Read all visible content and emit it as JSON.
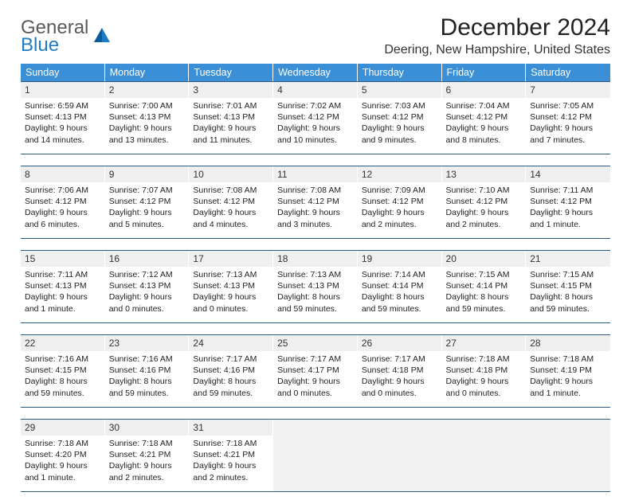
{
  "brand": {
    "word1": "General",
    "word2": "Blue"
  },
  "title": "December 2024",
  "location": "Deering, New Hampshire, United States",
  "day_headers": [
    "Sunday",
    "Monday",
    "Tuesday",
    "Wednesday",
    "Thursday",
    "Friday",
    "Saturday"
  ],
  "colors": {
    "header_bg": "#3b8fd6",
    "header_text": "#ffffff",
    "daynum_bg": "#efefef",
    "row_border": "#2b5a86",
    "logo_gray": "#5a5a5a",
    "logo_blue": "#1e7bc4"
  },
  "weeks": [
    [
      {
        "n": "1",
        "sr": "Sunrise: 6:59 AM",
        "ss": "Sunset: 4:13 PM",
        "d1": "Daylight: 9 hours",
        "d2": "and 14 minutes."
      },
      {
        "n": "2",
        "sr": "Sunrise: 7:00 AM",
        "ss": "Sunset: 4:13 PM",
        "d1": "Daylight: 9 hours",
        "d2": "and 13 minutes."
      },
      {
        "n": "3",
        "sr": "Sunrise: 7:01 AM",
        "ss": "Sunset: 4:13 PM",
        "d1": "Daylight: 9 hours",
        "d2": "and 11 minutes."
      },
      {
        "n": "4",
        "sr": "Sunrise: 7:02 AM",
        "ss": "Sunset: 4:12 PM",
        "d1": "Daylight: 9 hours",
        "d2": "and 10 minutes."
      },
      {
        "n": "5",
        "sr": "Sunrise: 7:03 AM",
        "ss": "Sunset: 4:12 PM",
        "d1": "Daylight: 9 hours",
        "d2": "and 9 minutes."
      },
      {
        "n": "6",
        "sr": "Sunrise: 7:04 AM",
        "ss": "Sunset: 4:12 PM",
        "d1": "Daylight: 9 hours",
        "d2": "and 8 minutes."
      },
      {
        "n": "7",
        "sr": "Sunrise: 7:05 AM",
        "ss": "Sunset: 4:12 PM",
        "d1": "Daylight: 9 hours",
        "d2": "and 7 minutes."
      }
    ],
    [
      {
        "n": "8",
        "sr": "Sunrise: 7:06 AM",
        "ss": "Sunset: 4:12 PM",
        "d1": "Daylight: 9 hours",
        "d2": "and 6 minutes."
      },
      {
        "n": "9",
        "sr": "Sunrise: 7:07 AM",
        "ss": "Sunset: 4:12 PM",
        "d1": "Daylight: 9 hours",
        "d2": "and 5 minutes."
      },
      {
        "n": "10",
        "sr": "Sunrise: 7:08 AM",
        "ss": "Sunset: 4:12 PM",
        "d1": "Daylight: 9 hours",
        "d2": "and 4 minutes."
      },
      {
        "n": "11",
        "sr": "Sunrise: 7:08 AM",
        "ss": "Sunset: 4:12 PM",
        "d1": "Daylight: 9 hours",
        "d2": "and 3 minutes."
      },
      {
        "n": "12",
        "sr": "Sunrise: 7:09 AM",
        "ss": "Sunset: 4:12 PM",
        "d1": "Daylight: 9 hours",
        "d2": "and 2 minutes."
      },
      {
        "n": "13",
        "sr": "Sunrise: 7:10 AM",
        "ss": "Sunset: 4:12 PM",
        "d1": "Daylight: 9 hours",
        "d2": "and 2 minutes."
      },
      {
        "n": "14",
        "sr": "Sunrise: 7:11 AM",
        "ss": "Sunset: 4:12 PM",
        "d1": "Daylight: 9 hours",
        "d2": "and 1 minute."
      }
    ],
    [
      {
        "n": "15",
        "sr": "Sunrise: 7:11 AM",
        "ss": "Sunset: 4:13 PM",
        "d1": "Daylight: 9 hours",
        "d2": "and 1 minute."
      },
      {
        "n": "16",
        "sr": "Sunrise: 7:12 AM",
        "ss": "Sunset: 4:13 PM",
        "d1": "Daylight: 9 hours",
        "d2": "and 0 minutes."
      },
      {
        "n": "17",
        "sr": "Sunrise: 7:13 AM",
        "ss": "Sunset: 4:13 PM",
        "d1": "Daylight: 9 hours",
        "d2": "and 0 minutes."
      },
      {
        "n": "18",
        "sr": "Sunrise: 7:13 AM",
        "ss": "Sunset: 4:13 PM",
        "d1": "Daylight: 8 hours",
        "d2": "and 59 minutes."
      },
      {
        "n": "19",
        "sr": "Sunrise: 7:14 AM",
        "ss": "Sunset: 4:14 PM",
        "d1": "Daylight: 8 hours",
        "d2": "and 59 minutes."
      },
      {
        "n": "20",
        "sr": "Sunrise: 7:15 AM",
        "ss": "Sunset: 4:14 PM",
        "d1": "Daylight: 8 hours",
        "d2": "and 59 minutes."
      },
      {
        "n": "21",
        "sr": "Sunrise: 7:15 AM",
        "ss": "Sunset: 4:15 PM",
        "d1": "Daylight: 8 hours",
        "d2": "and 59 minutes."
      }
    ],
    [
      {
        "n": "22",
        "sr": "Sunrise: 7:16 AM",
        "ss": "Sunset: 4:15 PM",
        "d1": "Daylight: 8 hours",
        "d2": "and 59 minutes."
      },
      {
        "n": "23",
        "sr": "Sunrise: 7:16 AM",
        "ss": "Sunset: 4:16 PM",
        "d1": "Daylight: 8 hours",
        "d2": "and 59 minutes."
      },
      {
        "n": "24",
        "sr": "Sunrise: 7:17 AM",
        "ss": "Sunset: 4:16 PM",
        "d1": "Daylight: 8 hours",
        "d2": "and 59 minutes."
      },
      {
        "n": "25",
        "sr": "Sunrise: 7:17 AM",
        "ss": "Sunset: 4:17 PM",
        "d1": "Daylight: 9 hours",
        "d2": "and 0 minutes."
      },
      {
        "n": "26",
        "sr": "Sunrise: 7:17 AM",
        "ss": "Sunset: 4:18 PM",
        "d1": "Daylight: 9 hours",
        "d2": "and 0 minutes."
      },
      {
        "n": "27",
        "sr": "Sunrise: 7:18 AM",
        "ss": "Sunset: 4:18 PM",
        "d1": "Daylight: 9 hours",
        "d2": "and 0 minutes."
      },
      {
        "n": "28",
        "sr": "Sunrise: 7:18 AM",
        "ss": "Sunset: 4:19 PM",
        "d1": "Daylight: 9 hours",
        "d2": "and 1 minute."
      }
    ],
    [
      {
        "n": "29",
        "sr": "Sunrise: 7:18 AM",
        "ss": "Sunset: 4:20 PM",
        "d1": "Daylight: 9 hours",
        "d2": "and 1 minute."
      },
      {
        "n": "30",
        "sr": "Sunrise: 7:18 AM",
        "ss": "Sunset: 4:21 PM",
        "d1": "Daylight: 9 hours",
        "d2": "and 2 minutes."
      },
      {
        "n": "31",
        "sr": "Sunrise: 7:18 AM",
        "ss": "Sunset: 4:21 PM",
        "d1": "Daylight: 9 hours",
        "d2": "and 2 minutes."
      },
      null,
      null,
      null,
      null
    ]
  ]
}
